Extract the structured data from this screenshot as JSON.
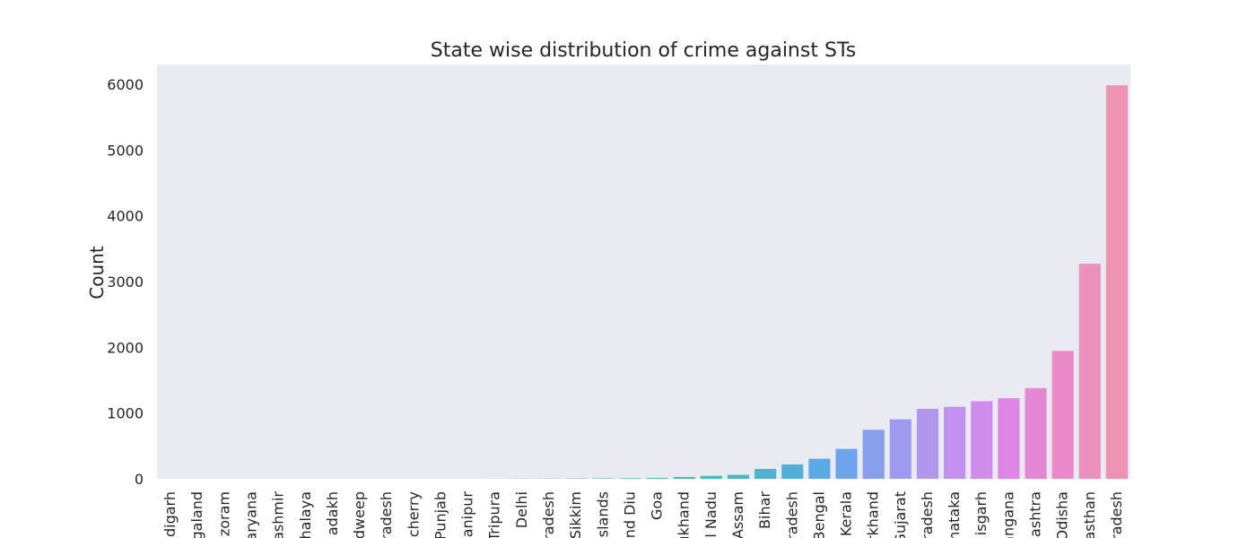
{
  "chart_data": {
    "type": "bar",
    "title": "State wise distribution of crime against STs",
    "xlabel": "",
    "ylabel": "Count",
    "ylim": [
      0,
      6300
    ],
    "yticks": [
      0,
      1000,
      2000,
      3000,
      4000,
      5000,
      6000
    ],
    "grid": false,
    "categories": [
      "ndigarh",
      "galand",
      "zoram",
      "aryana",
      "ashmir",
      "halaya",
      "adakh",
      "dweep",
      "radesh",
      "cherry",
      "Punjab",
      "lanipur",
      "Tripura",
      "Delhi",
      "radesh",
      "Sikkim",
      "Islands",
      "and Diu",
      "Goa",
      "ukhand",
      "il Nadu",
      "Assam",
      "Bihar",
      "radesh",
      "Bengal",
      "Kerala",
      "rkhand",
      "Gujarat",
      "radesh",
      "nataka",
      "isgarh",
      "angana",
      "ashtra",
      "Odisha",
      "asthan",
      "radesh"
    ],
    "values": [
      0,
      0,
      0,
      0,
      0,
      0,
      0,
      0,
      0,
      0,
      0,
      0,
      1,
      2,
      3,
      5,
      7,
      9,
      14,
      28,
      45,
      60,
      150,
      220,
      305,
      455,
      745,
      905,
      1065,
      1095,
      1180,
      1225,
      1380,
      1945,
      3270,
      5985
    ],
    "colors": [
      "#e8a04b",
      "#e0a24a",
      "#d8a549",
      "#cfa84b",
      "#c7aa49",
      "#bead4b",
      "#b4af4a",
      "#a9b24b",
      "#9cb44b",
      "#8eb74b",
      "#7eba4b",
      "#6bbc4f",
      "#56bd5c",
      "#4fbe6c",
      "#4ebe7a",
      "#4ebe87",
      "#4dbe92",
      "#4cbd9c",
      "#4bbca6",
      "#4bbbb0",
      "#4ab9ba",
      "#4ab7c4",
      "#4cb4cf",
      "#51b0da",
      "#5caae4",
      "#6ea4ea",
      "#879fed",
      "#9d9bee",
      "#b097ee",
      "#c191ed",
      "#d08cea",
      "#de86e5",
      "#e687d6",
      "#e98ac9",
      "#ec8fbd",
      "#ec93b1"
    ]
  }
}
